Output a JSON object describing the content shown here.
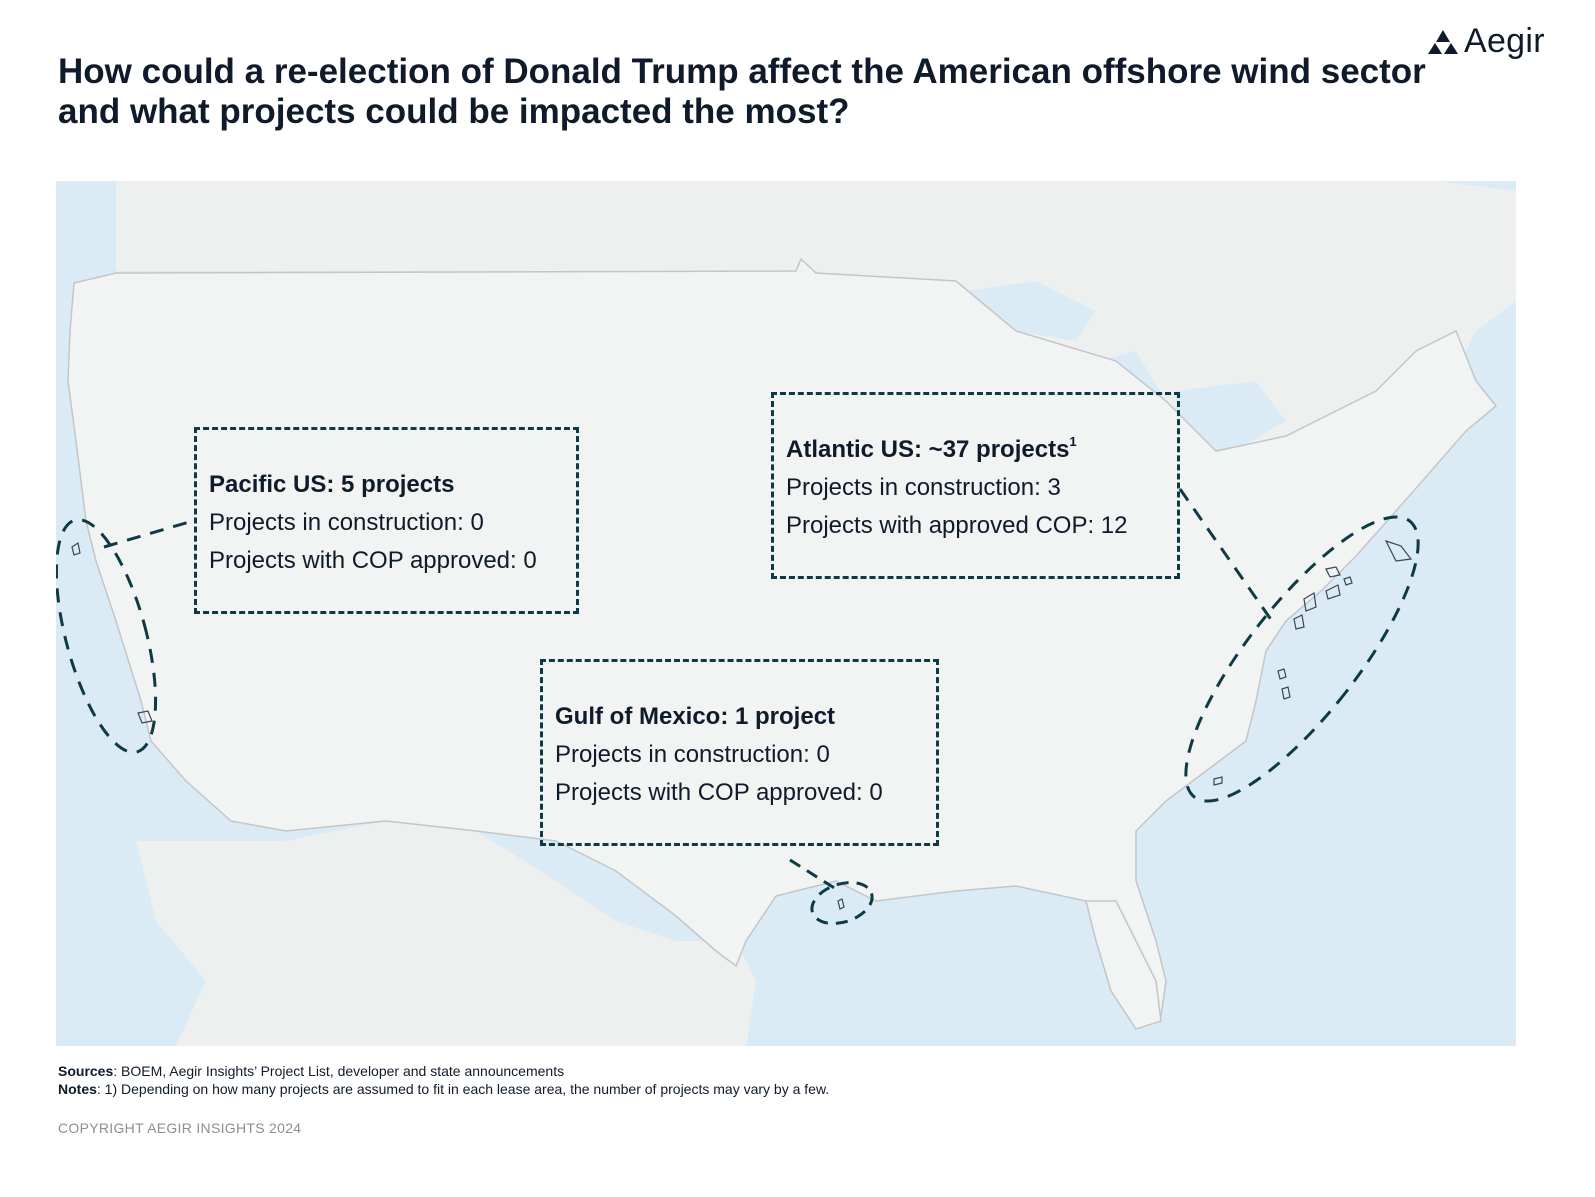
{
  "brand": {
    "name": "Aegir",
    "logo_icon": "triangle-cluster-icon"
  },
  "title": "How could a re-election of Donald Trump affect the American offshore wind sector and what projects could be impacted the most?",
  "colors": {
    "ocean": "#dbebf6",
    "land": "#f2f3f3",
    "dash": "#0d3a44",
    "border": "#c3c6c8"
  },
  "regions": {
    "pacific": {
      "heading": "Pacific US: 5 projects",
      "construction": "Projects in construction: 0",
      "cop": "Projects with COP approved: 0"
    },
    "atlantic": {
      "heading": "Atlantic US: ~37 projects",
      "footnote_marker": "1",
      "construction": "Projects in construction: 3",
      "cop": "Projects with approved COP: 12"
    },
    "gulf": {
      "heading": "Gulf of Mexico: 1 project",
      "construction": "Projects in construction: 0",
      "cop": "Projects with COP approved: 0"
    }
  },
  "footer": {
    "sources_label": "Sources",
    "sources_text": ": BOEM, Aegir Insights’ Project List, developer and state announcements",
    "notes_label": "Notes",
    "notes_text": ": 1) Depending on how many projects are assumed to fit in each lease area, the number of projects may vary by a few."
  },
  "copyright": "COPYRIGHT AEGIR INSIGHTS 2024"
}
